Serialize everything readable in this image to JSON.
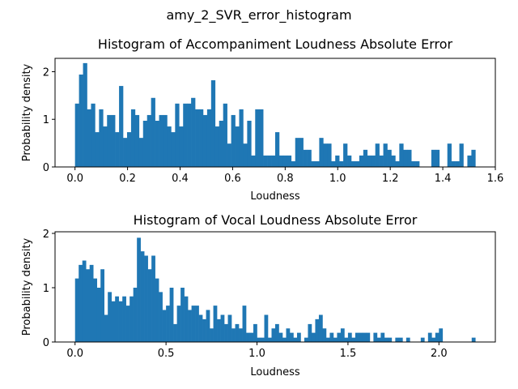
{
  "figure": {
    "suptitle": "amy_2_SVR_error_histogram",
    "bar_color": "#1f77b4"
  },
  "chart_data": [
    {
      "type": "bar",
      "title": "Histogram of Accompaniment Loudness Absolute Error",
      "xlabel": "Loudness",
      "ylabel": "Probability density",
      "xlim": [
        -0.076,
        1.6
      ],
      "ylim": [
        0,
        2.28
      ],
      "xticks": [
        0.0,
        0.2,
        0.4,
        0.6,
        0.8,
        1.0,
        1.2,
        1.4,
        1.6
      ],
      "xtick_labels": [
        "0.0",
        "0.2",
        "0.4",
        "0.6",
        "0.8",
        "1.0",
        "1.2",
        "1.4",
        "1.6"
      ],
      "yticks": [
        0,
        1,
        2
      ],
      "ytick_labels": [
        "0",
        "1",
        "2"
      ],
      "bin_start": 0.0,
      "bin_width": 0.01524,
      "values": [
        1.33,
        1.94,
        2.18,
        1.21,
        1.33,
        0.73,
        1.21,
        0.85,
        1.09,
        1.09,
        0.73,
        1.7,
        0.61,
        0.73,
        1.21,
        1.09,
        0.61,
        0.97,
        1.09,
        1.45,
        0.97,
        1.09,
        1.09,
        0.85,
        0.73,
        1.33,
        0.85,
        1.33,
        1.33,
        1.45,
        1.21,
        1.21,
        1.09,
        1.21,
        1.82,
        0.85,
        0.97,
        1.33,
        0.49,
        1.09,
        0.85,
        1.21,
        0.49,
        0.97,
        0.24,
        1.21,
        1.21,
        0.24,
        0.24,
        0.24,
        0.73,
        0.24,
        0.24,
        0.24,
        0.12,
        0.61,
        0.61,
        0.36,
        0.36,
        0.12,
        0.12,
        0.61,
        0.49,
        0.49,
        0.12,
        0.24,
        0.12,
        0.49,
        0.24,
        0.12,
        0.12,
        0.24,
        0.36,
        0.24,
        0.24,
        0.49,
        0.24,
        0.49,
        0.36,
        0.24,
        0.12,
        0.49,
        0.36,
        0.36,
        0.12,
        0.12,
        0.0,
        0.0,
        0.0,
        0.36,
        0.36,
        0.0,
        0.0,
        0.49,
        0.12,
        0.12,
        0.49,
        0.0,
        0.24,
        0.36,
        0.0,
        0.0,
        0.0,
        0.0,
        0.0,
        0.0,
        0.0,
        0.0,
        0.0,
        0.0,
        0.0,
        0.0,
        0.0,
        0.0,
        0.0,
        0.0,
        0.0,
        0.0,
        0.0,
        0.0,
        0.0,
        0.0,
        0.0,
        0.0,
        0.0,
        0.12
      ]
    },
    {
      "type": "bar",
      "title": "Histogram of Vocal Loudness Absolute Error",
      "xlabel": "Loudness",
      "ylabel": "Probability density",
      "xlim": [
        -0.11,
        2.31
      ],
      "ylim": [
        0,
        2.03
      ],
      "xticks": [
        0.0,
        0.5,
        1.0,
        1.5,
        2.0
      ],
      "xtick_labels": [
        "0.0",
        "0.5",
        "1.0",
        "1.5",
        "2.0"
      ],
      "yticks": [
        0,
        1,
        2
      ],
      "ytick_labels": [
        "0",
        "1",
        "2"
      ],
      "bin_start": 0.0,
      "bin_width": 0.02,
      "values": [
        1.17,
        1.42,
        1.5,
        1.34,
        1.42,
        1.17,
        1.0,
        1.34,
        0.5,
        0.92,
        0.75,
        0.84,
        0.75,
        0.84,
        0.67,
        0.84,
        1.0,
        1.92,
        1.67,
        1.59,
        1.34,
        1.59,
        1.17,
        0.92,
        0.59,
        0.67,
        1.0,
        0.33,
        0.67,
        1.0,
        0.84,
        0.59,
        0.67,
        0.67,
        0.5,
        0.42,
        0.59,
        0.25,
        0.67,
        0.42,
        0.5,
        0.33,
        0.5,
        0.25,
        0.33,
        0.25,
        0.67,
        0.17,
        0.17,
        0.33,
        0.08,
        0.08,
        0.5,
        0.08,
        0.25,
        0.33,
        0.17,
        0.08,
        0.25,
        0.17,
        0.08,
        0.17,
        0.0,
        0.08,
        0.33,
        0.17,
        0.42,
        0.5,
        0.25,
        0.08,
        0.17,
        0.08,
        0.17,
        0.25,
        0.08,
        0.17,
        0.08,
        0.17,
        0.17,
        0.17,
        0.17,
        0.0,
        0.17,
        0.08,
        0.17,
        0.08,
        0.08,
        0.0,
        0.08,
        0.08,
        0.0,
        0.08,
        0.0,
        0.0,
        0.0,
        0.08,
        0.0,
        0.17,
        0.08,
        0.17,
        0.25,
        0.0,
        0.0,
        0.0,
        0.0,
        0.0,
        0.0,
        0.0,
        0.0,
        0.08
      ]
    }
  ]
}
